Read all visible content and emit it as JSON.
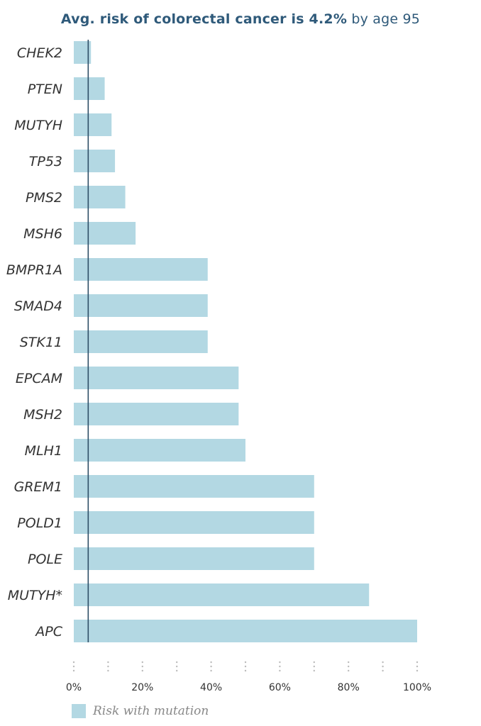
{
  "title": {
    "bold_part": "Avg. risk of colorectal cancer is 4.2%",
    "rest_part": "by age 95"
  },
  "colors": {
    "bar": "#b3d8e3",
    "average_line": "#2e4e66",
    "title": "#2f5a7a",
    "tick_dots": "#bbbbbb"
  },
  "chart_data": {
    "type": "bar",
    "orientation": "horizontal",
    "categories": [
      "CHEK2",
      "PTEN",
      "MUTYH",
      "TP53",
      "PMS2",
      "MSH6",
      "BMPR1A",
      "SMAD4",
      "STK11",
      "EPCAM",
      "MSH2",
      "MLH1",
      "GREM1",
      "POLD1",
      "POLE",
      "MUTYH*",
      "APC"
    ],
    "values": [
      5,
      9,
      11,
      12,
      15,
      18,
      39,
      39,
      39,
      48,
      48,
      50,
      70,
      70,
      70,
      86,
      100
    ],
    "reference_line": 4.2,
    "xlim": [
      0,
      100
    ],
    "xticks": [
      0,
      10,
      20,
      30,
      40,
      50,
      60,
      70,
      80,
      90,
      100
    ],
    "xtick_labels": [
      "0%",
      "",
      "20%",
      "",
      "40%",
      "",
      "60%",
      "",
      "80%",
      "",
      "100%"
    ],
    "legend": [
      "Risk with mutation"
    ],
    "legend_position": "bottom-left",
    "grid": false
  }
}
